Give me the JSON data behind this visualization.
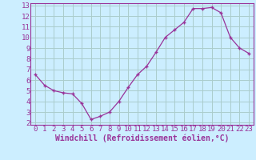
{
  "x": [
    0,
    1,
    2,
    3,
    4,
    5,
    6,
    7,
    8,
    9,
    10,
    11,
    12,
    13,
    14,
    15,
    16,
    17,
    18,
    19,
    20,
    21,
    22,
    23
  ],
  "y": [
    6.5,
    5.5,
    5.0,
    4.8,
    4.7,
    3.8,
    2.3,
    2.6,
    3.0,
    4.0,
    5.3,
    6.5,
    7.3,
    8.6,
    10.0,
    10.7,
    11.4,
    12.7,
    12.7,
    12.8,
    12.3,
    10.0,
    9.0,
    8.5
  ],
  "line_color": "#993399",
  "marker": "+",
  "bg_color": "#cceeff",
  "grid_color": "#aacccc",
  "xlabel": "Windchill (Refroidissement éolien,°C)",
  "tick_color": "#993399",
  "ylim": [
    2,
    13
  ],
  "yticks": [
    2,
    3,
    4,
    5,
    6,
    7,
    8,
    9,
    10,
    11,
    12,
    13
  ],
  "xticks": [
    0,
    1,
    2,
    3,
    4,
    5,
    6,
    7,
    8,
    9,
    10,
    11,
    12,
    13,
    14,
    15,
    16,
    17,
    18,
    19,
    20,
    21,
    22,
    23
  ],
  "font_size": 6.5,
  "marker_size": 3,
  "linewidth": 0.9
}
